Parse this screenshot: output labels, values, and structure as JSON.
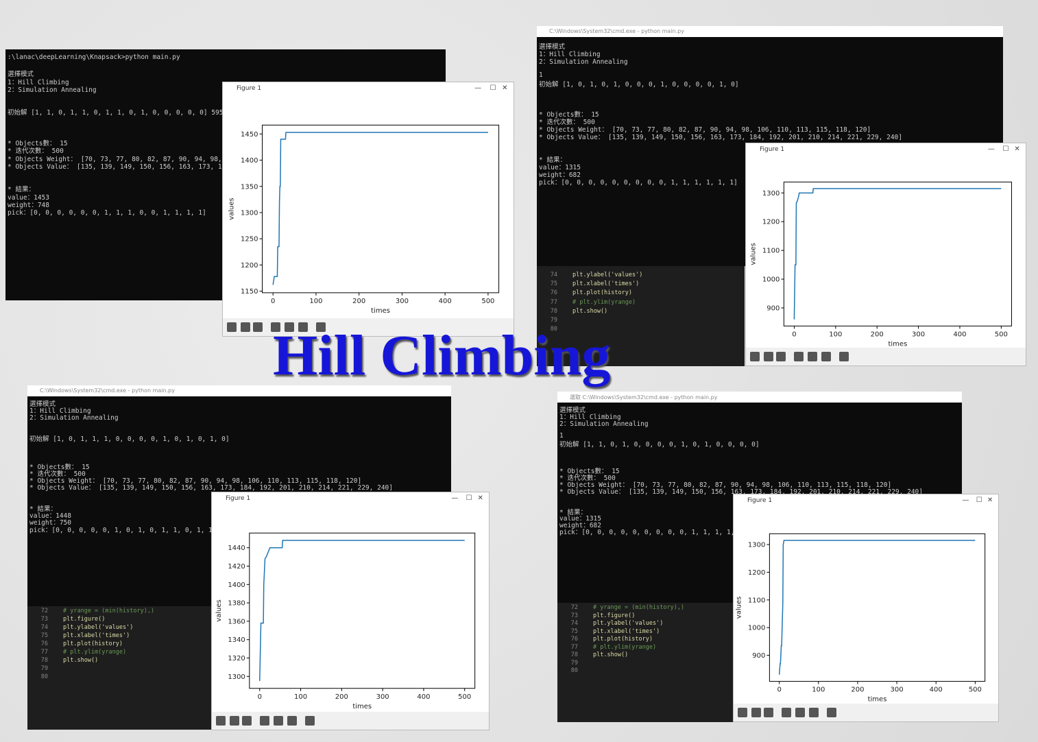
{
  "title": "Hill Climbing",
  "panels": [
    {
      "terminal": [
        ":\\lanac\\deepLearning\\Knapsack>python main.py",
        "選擇模式",
        "1：Hill Climbing",
        "2：Simulation Annealing",
        "初始解 [1, 1, 0, 1, 1, 0, 1, 1, 0, 1, 0, 0, 0, 0, 0] 595",
        "* Objects數：  15",
        "* 迭代次數： 500",
        "* Objects Weight： [70, 73, 77, 80, 82, 87, 90, 94, 98, 1",
        "* Objects Value： [135, 139, 149, 150, 156, 163, 173, 184",
        "* 結果：",
        "value：1453",
        "weight：748",
        "pick：[0, 0, 0, 0, 0, 0, 1, 1, 1, 0, 0, 1, 1, 1, 1]"
      ],
      "figure_title": "Figure 1"
    },
    {
      "window_title": "C:\\Windows\\System32\\cmd.exe - python main.py",
      "terminal": [
        "選擇模式",
        "1：Hill Climbing",
        "2：Simulation Annealing",
        "1",
        "初始解 [1, 0, 1, 0, 1, 0, 0, 0, 1, 0, 0, 0, 0, 1, 0]",
        "* Objects數：  15",
        "* 迭代次數： 500",
        "* Objects Weight： [70, 73, 77, 80, 82, 87, 90, 94, 98, 106, 110, 113, 115, 118, 120]",
        "* Objects Value： [135, 139, 149, 150, 156, 163, 173, 184, 192, 201, 210, 214, 221, 229, 240]",
        "* 結果：",
        "value：1315",
        "weight：682",
        "pick：[0, 0, 0, 0, 0, 0, 0, 0, 0, 1, 1, 1, 1, 1, 1]"
      ],
      "code": {
        "numbers": [
          "74",
          "75",
          "76",
          "77",
          "78",
          "79",
          "80"
        ],
        "lines": [
          "plt.ylabel('values')",
          "plt.xlabel('times')",
          "plt.plot(history)",
          "# plt.ylim(yrange)",
          "plt.show()"
        ]
      },
      "figure_title": "Figure 1"
    },
    {
      "window_title": "C:\\Windows\\System32\\cmd.exe - python main.py",
      "terminal": [
        "選擇模式",
        "1：Hill Climbing",
        "2：Simulation Annealing",
        "初始解 [1, 0, 1, 1, 1, 0, 0, 0, 0, 1, 0, 1, 0, 1, 0]",
        "* Objects數：  15",
        "* 迭代次數： 500",
        "* Objects Weight： [70, 73, 77, 80, 82, 87, 90, 94, 98, 106, 110, 113, 115, 118, 120]",
        "* Objects Value： [135, 139, 149, 150, 156, 163, 173, 184, 192, 201, 210, 214, 221, 229, 240]",
        "* 結果：",
        "value：1448",
        "weight：750",
        "pick：[0, 0, 0, 0, 0, 1, 0, 1, 0, 1, 1, 0, 1, 1, 1]"
      ],
      "code": {
        "numbers": [
          "72",
          "73",
          "74",
          "75",
          "76",
          "77",
          "78",
          "79",
          "80"
        ],
        "lines": [
          "# yrange = (min(history),)",
          "plt.figure()",
          "plt.ylabel('values')",
          "plt.xlabel('times')",
          "plt.plot(history)",
          "# plt.ylim(yrange)",
          "plt.show()"
        ]
      },
      "figure_title": "Figure 1"
    },
    {
      "window_title": "選取 C:\\Windows\\System32\\cmd.exe - python main.py",
      "terminal": [
        "選擇模式",
        "1：Hill Climbing",
        "2：Simulation Annealing",
        "1",
        "初始解 [1, 1, 0, 1, 0, 0, 0, 0, 1, 0, 1, 0, 0, 0, 0]",
        "* Objects數：  15",
        "* 迭代次數： 500",
        "* Objects Weight： [70, 73, 77, 80, 82, 87, 90, 94, 98, 106, 110, 113, 115, 118, 120]",
        "* Objects Value： [135, 139, 149, 150, 156, 163, 173, 184, 192, 201, 210, 214, 221, 229, 240]",
        "* 結果：",
        "value：1315",
        "weight：682",
        "pick：[0, 0, 0, 0, 0, 0, 0, 0, 0, 1, 1, 1, 1, 1, 1]"
      ],
      "code": {
        "numbers": [
          "72",
          "73",
          "74",
          "75",
          "76",
          "77",
          "78",
          "79",
          "80"
        ],
        "lines": [
          "# yrange = (min(history),)",
          "plt.figure()",
          "plt.ylabel('values')",
          "plt.xlabel('times')",
          "plt.plot(history)",
          "# plt.ylim(yrange)",
          "plt.show()"
        ]
      },
      "figure_title": "Figure 1"
    }
  ],
  "chart_data": [
    {
      "type": "line",
      "xlabel": "times",
      "ylabel": "values",
      "color": "#1f77b4",
      "x": [
        0,
        3,
        10,
        11,
        14,
        15,
        16,
        17,
        18,
        29,
        30,
        500
      ],
      "values": [
        1162,
        1178,
        1178,
        1235,
        1235,
        1320,
        1350,
        1350,
        1440,
        1440,
        1453,
        1453
      ],
      "xlim": [
        -25,
        525
      ],
      "ylim": [
        1147,
        1467
      ],
      "xticks": [
        0,
        100,
        200,
        300,
        400,
        500
      ],
      "yticks": [
        1150,
        1200,
        1250,
        1300,
        1350,
        1400,
        1450
      ]
    },
    {
      "type": "line",
      "xlabel": "times",
      "ylabel": "values",
      "color": "#1f77b4",
      "x": [
        0,
        1,
        2,
        4,
        5,
        7,
        11,
        12,
        45,
        46,
        500
      ],
      "values": [
        860,
        960,
        1050,
        1050,
        1265,
        1270,
        1290,
        1300,
        1300,
        1315,
        1315
      ],
      "xlim": [
        -25,
        525
      ],
      "ylim": [
        837,
        1338
      ],
      "xticks": [
        0,
        100,
        200,
        300,
        400,
        500
      ],
      "yticks": [
        900,
        1000,
        1100,
        1200,
        1300
      ]
    },
    {
      "type": "line",
      "xlabel": "times",
      "ylabel": "values",
      "color": "#1f77b4",
      "x": [
        0,
        3,
        9,
        10,
        13,
        16,
        25,
        55,
        56,
        500
      ],
      "values": [
        1295,
        1358,
        1358,
        1400,
        1428,
        1430,
        1440,
        1440,
        1448,
        1448
      ],
      "xlim": [
        -25,
        525
      ],
      "ylim": [
        1287,
        1456
      ],
      "xticks": [
        0,
        100,
        200,
        300,
        400,
        500
      ],
      "yticks": [
        1300,
        1320,
        1340,
        1360,
        1380,
        1400,
        1420,
        1440
      ]
    },
    {
      "type": "line",
      "xlabel": "times",
      "ylabel": "values",
      "color": "#1f77b4",
      "x": [
        0,
        2,
        3,
        5,
        6,
        9,
        10,
        12,
        500
      ],
      "values": [
        830,
        870,
        870,
        935,
        935,
        1090,
        1300,
        1315,
        1315
      ],
      "xlim": [
        -25,
        525
      ],
      "ylim": [
        806,
        1339
      ],
      "xticks": [
        0,
        100,
        200,
        300,
        400,
        500
      ],
      "yticks": [
        900,
        1000,
        1100,
        1200,
        1300
      ]
    }
  ]
}
